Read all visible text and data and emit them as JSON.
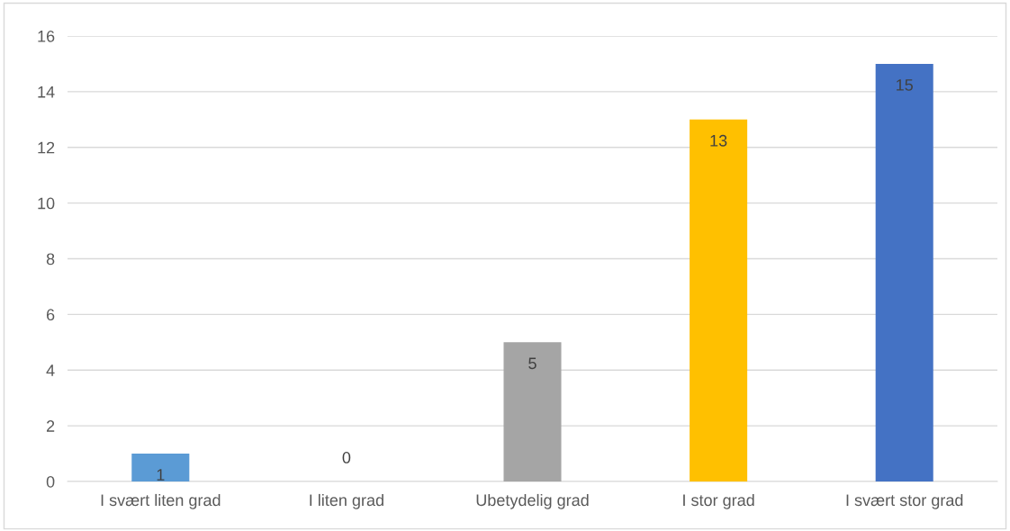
{
  "chart_data": {
    "type": "bar",
    "categories": [
      "I svært liten grad",
      "I liten grad",
      "Ubetydelig grad",
      "I stor grad",
      "I svært stor grad"
    ],
    "values": [
      1,
      0,
      5,
      13,
      15
    ],
    "colors": [
      "#5b9bd5",
      "#ed7d31",
      "#a5a5a5",
      "#ffc000",
      "#4472c4"
    ],
    "ylim": [
      0,
      16
    ],
    "yticks": [
      0,
      2,
      4,
      6,
      8,
      10,
      12,
      14,
      16
    ],
    "grid": "y",
    "data_labels": true,
    "legend": false
  }
}
